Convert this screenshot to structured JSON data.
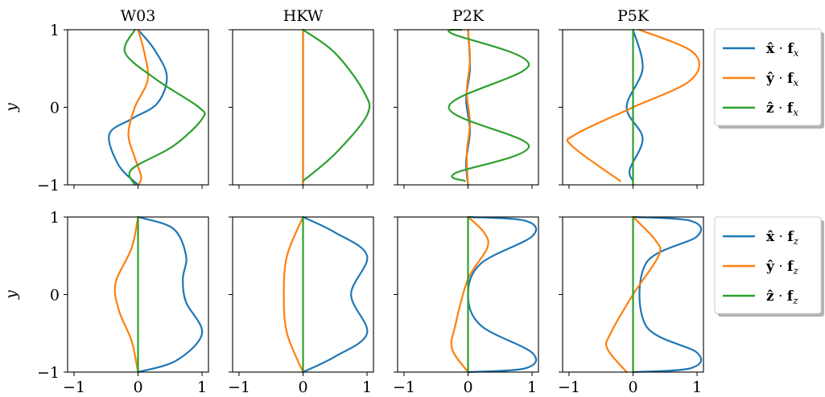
{
  "colors": {
    "c0": "#1f77b4",
    "c1": "#ff7f0e",
    "c2": "#2ca02c"
  },
  "chart_data": [
    {
      "type": "line",
      "title": "W03",
      "xlim": [
        -1.1,
        1.1
      ],
      "ylim": [
        -1,
        1
      ],
      "ylabel": "y",
      "series": [
        {
          "name": "x̂·f_x",
          "x": [
            0,
            0.25,
            0.45,
            0.3,
            -0.1,
            -0.45,
            -0.3,
            0
          ],
          "y": [
            1,
            0.75,
            0.4,
            0.05,
            -0.15,
            -0.35,
            -0.75,
            -1
          ]
        },
        {
          "name": "ŷ·f_x",
          "x": [
            0,
            0.1,
            0.15,
            -0.05,
            -0.15,
            -0.05,
            0.05,
            0
          ],
          "y": [
            1,
            0.7,
            0.35,
            0,
            -0.35,
            -0.65,
            -0.9,
            -1
          ]
        },
        {
          "name": "ẑ·f_x",
          "x": [
            -0.05,
            -0.2,
            0.3,
            0.95,
            1.0,
            0.55,
            -0.1,
            -0.05
          ],
          "y": [
            1,
            0.7,
            0.35,
            0.0,
            -0.15,
            -0.5,
            -0.8,
            -1
          ]
        }
      ]
    },
    {
      "type": "line",
      "title": "HKW",
      "xlim": [
        -1.1,
        1.1
      ],
      "ylim": [
        -1,
        1
      ],
      "series": [
        {
          "name": "x̂·f_x",
          "x": [
            0,
            0
          ],
          "y": [
            1,
            -1
          ]
        },
        {
          "name": "ŷ·f_x",
          "x": [
            0,
            0
          ],
          "y": [
            1,
            -1
          ]
        },
        {
          "name": "ẑ·f_x",
          "x": [
            0,
            0.5,
            0.95,
            1.0,
            0.5,
            0
          ],
          "y": [
            1,
            0.7,
            0.2,
            -0.1,
            -0.6,
            -0.95
          ]
        }
      ]
    },
    {
      "type": "line",
      "title": "P2K",
      "xlim": [
        -1.1,
        1.1
      ],
      "ylim": [
        -1,
        1
      ],
      "series": [
        {
          "name": "x̂·f_x",
          "x": [
            0,
            0.03,
            -0.03,
            0.03,
            -0.03,
            0
          ],
          "y": [
            1,
            0.5,
            0.1,
            -0.3,
            -0.7,
            -1
          ]
        },
        {
          "name": "ŷ·f_x",
          "x": [
            0,
            0.03,
            -0.02,
            0.03,
            -0.02,
            0
          ],
          "y": [
            1,
            0.6,
            0.2,
            -0.2,
            -0.6,
            -1
          ]
        },
        {
          "name": "ẑ·f_x",
          "x": [
            -0.1,
            -0.25,
            0.95,
            -0.3,
            0.95,
            -0.2,
            -0.05
          ],
          "y": [
            1,
            0.95,
            0.55,
            0.0,
            -0.5,
            -0.85,
            -0.95
          ]
        }
      ]
    },
    {
      "type": "line",
      "title": "P5K",
      "xlim": [
        -1.1,
        1.1
      ],
      "ylim": [
        -1,
        1
      ],
      "series": [
        {
          "name": "x̂·f_x",
          "x": [
            0,
            0.15,
            -0.1,
            0.15,
            -0.05,
            0
          ],
          "y": [
            1,
            0.5,
            0.0,
            -0.4,
            -0.8,
            -0.95
          ]
        },
        {
          "name": "ŷ·f_x",
          "x": [
            0.1,
            0.95,
            0.9,
            0.0,
            -0.9,
            -0.95,
            -0.2
          ],
          "y": [
            1,
            0.7,
            0.35,
            0.0,
            -0.35,
            -0.5,
            -0.95
          ]
        },
        {
          "name": "ẑ·f_x",
          "x": [
            0,
            0,
            0
          ],
          "y": [
            1,
            0,
            -1
          ]
        }
      ]
    },
    {
      "type": "line",
      "xlim": [
        -1.1,
        1.1
      ],
      "ylim": [
        -1,
        1
      ],
      "ylabel": "y",
      "series": [
        {
          "name": "x̂·f_z",
          "x": [
            0,
            0.55,
            0.75,
            0.7,
            0.75,
            1.0,
            0.6,
            0
          ],
          "y": [
            1,
            0.85,
            0.5,
            0.2,
            -0.1,
            -0.5,
            -0.85,
            -1
          ]
        },
        {
          "name": "ŷ·f_z",
          "x": [
            0,
            -0.1,
            -0.35,
            -0.3,
            -0.1,
            0
          ],
          "y": [
            1,
            0.6,
            0.15,
            -0.2,
            -0.6,
            -1
          ]
        },
        {
          "name": "ẑ·f_z",
          "x": [
            0,
            0,
            0
          ],
          "y": [
            1,
            0,
            -1
          ]
        }
      ]
    },
    {
      "type": "line",
      "xlim": [
        -1.1,
        1.1
      ],
      "ylim": [
        -1,
        1
      ],
      "series": [
        {
          "name": "x̂·f_z",
          "x": [
            0,
            0.5,
            1.0,
            0.75,
            1.0,
            0.5,
            0
          ],
          "y": [
            1,
            0.8,
            0.5,
            0.0,
            -0.5,
            -0.8,
            -1
          ]
        },
        {
          "name": "ŷ·f_z",
          "x": [
            0,
            -0.25,
            -0.3,
            -0.25,
            0
          ],
          "y": [
            1,
            0.5,
            0.0,
            -0.5,
            -1
          ]
        },
        {
          "name": "ẑ·f_z",
          "x": [
            0,
            0
          ],
          "y": [
            1,
            -1
          ]
        }
      ]
    },
    {
      "type": "line",
      "xlim": [
        -1.1,
        1.1
      ],
      "ylim": [
        -1,
        1
      ],
      "series": [
        {
          "name": "x̂·f_z",
          "x": [
            0,
            0.9,
            1.0,
            0.2,
            0.0,
            0.2,
            1.0,
            0.9,
            0
          ],
          "y": [
            1,
            0.95,
            0.75,
            0.4,
            0.0,
            -0.4,
            -0.75,
            -0.95,
            -1
          ]
        },
        {
          "name": "ŷ·f_z",
          "x": [
            0,
            0.25,
            0.3,
            0.0,
            -0.2,
            -0.25,
            0
          ],
          "y": [
            1,
            0.8,
            0.6,
            0.2,
            -0.4,
            -0.7,
            -1
          ]
        },
        {
          "name": "ẑ·f_z",
          "x": [
            0,
            0
          ],
          "y": [
            1,
            -1
          ]
        }
      ]
    },
    {
      "type": "line",
      "xlim": [
        -1.1,
        1.1
      ],
      "ylim": [
        -1,
        1
      ],
      "series": [
        {
          "name": "x̂·f_z",
          "x": [
            0,
            0.9,
            1.0,
            0.2,
            0.2,
            1.0,
            0.9,
            0
          ],
          "y": [
            1,
            0.95,
            0.75,
            0.4,
            -0.4,
            -0.75,
            -0.95,
            -1
          ]
        },
        {
          "name": "ŷ·f_z",
          "x": [
            0,
            0.35,
            0.4,
            0.0,
            -0.35,
            -0.4,
            -0.1
          ],
          "y": [
            1,
            0.7,
            0.5,
            0.0,
            -0.5,
            -0.7,
            -1
          ]
        },
        {
          "name": "ẑ·f_z",
          "x": [
            0,
            0
          ],
          "y": [
            1,
            -1
          ]
        }
      ]
    }
  ],
  "ticks": {
    "x": [
      "−1",
      "0",
      "1"
    ],
    "y": [
      "1",
      "0",
      "−1"
    ]
  },
  "legends": [
    {
      "entries": [
        "x̂ · f_x",
        "ŷ · f_x",
        "ẑ · f_x"
      ]
    },
    {
      "entries": [
        "x̂ · f_z",
        "ŷ · f_z",
        "ẑ · f_z"
      ]
    }
  ]
}
